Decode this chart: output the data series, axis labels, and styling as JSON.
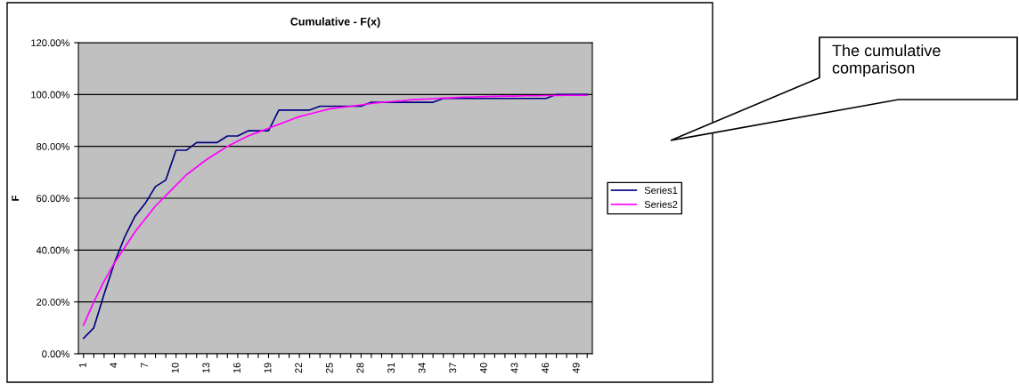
{
  "chart_data": {
    "type": "line",
    "title": "Cumulative - F(x)",
    "ylabel": "F",
    "categories": [
      "1",
      null,
      null,
      "4",
      null,
      null,
      "7",
      null,
      null,
      "10",
      null,
      null,
      "13",
      null,
      null,
      "16",
      null,
      null,
      "19",
      null,
      null,
      "22",
      null,
      null,
      "25",
      null,
      null,
      "28",
      null,
      null,
      "31",
      null,
      null,
      "34",
      null,
      null,
      "37",
      null,
      null,
      "40",
      null,
      null,
      "43",
      null,
      null,
      "46",
      null,
      null,
      "49",
      null
    ],
    "series": [
      {
        "name": "Series1",
        "color": "#000080",
        "values": [
          6,
          10,
          23,
          35,
          45,
          53,
          58,
          64.5,
          67,
          78.5,
          78.5,
          81.5,
          81.5,
          81.5,
          84,
          84,
          86,
          86,
          86,
          94,
          94,
          94,
          94,
          95.5,
          95.5,
          95.5,
          95.5,
          95.5,
          97,
          97,
          97,
          97,
          97,
          97,
          97,
          98.5,
          98.5,
          98.5,
          98.5,
          98.5,
          98.5,
          98.5,
          98.5,
          98.5,
          98.5,
          98.5,
          100,
          100,
          100,
          100
        ]
      },
      {
        "name": "Series2",
        "color": "#ff00ff",
        "values": [
          11,
          20,
          28,
          35,
          41,
          47,
          52,
          57,
          61,
          65,
          69,
          72,
          75,
          77.5,
          80,
          82,
          84,
          85.5,
          87,
          88.5,
          90,
          91.5,
          92.5,
          93.5,
          94.5,
          95,
          95.5,
          96,
          96.5,
          97,
          97.3,
          97.6,
          98,
          98.2,
          98.4,
          98.6,
          98.8,
          99,
          99.1,
          99.2,
          99.3,
          99.4,
          99.4,
          99.5,
          99.5,
          99.6,
          99.6,
          99.7,
          99.7,
          99.7
        ]
      }
    ],
    "ylim": [
      0,
      120
    ],
    "yticks": [
      {
        "value": 0,
        "label": "0.00%"
      },
      {
        "value": 20,
        "label": "20.00%"
      },
      {
        "value": 40,
        "label": "40.00%"
      },
      {
        "value": 60,
        "label": "60.00%"
      },
      {
        "value": 80,
        "label": "80.00%"
      },
      {
        "value": 100,
        "label": "100.00%"
      },
      {
        "value": 120,
        "label": "120.00%"
      }
    ],
    "grid": "y",
    "legend": "right",
    "marker": "none",
    "line_style": "solid",
    "annotations": [
      "The cumulative comparison"
    ]
  }
}
